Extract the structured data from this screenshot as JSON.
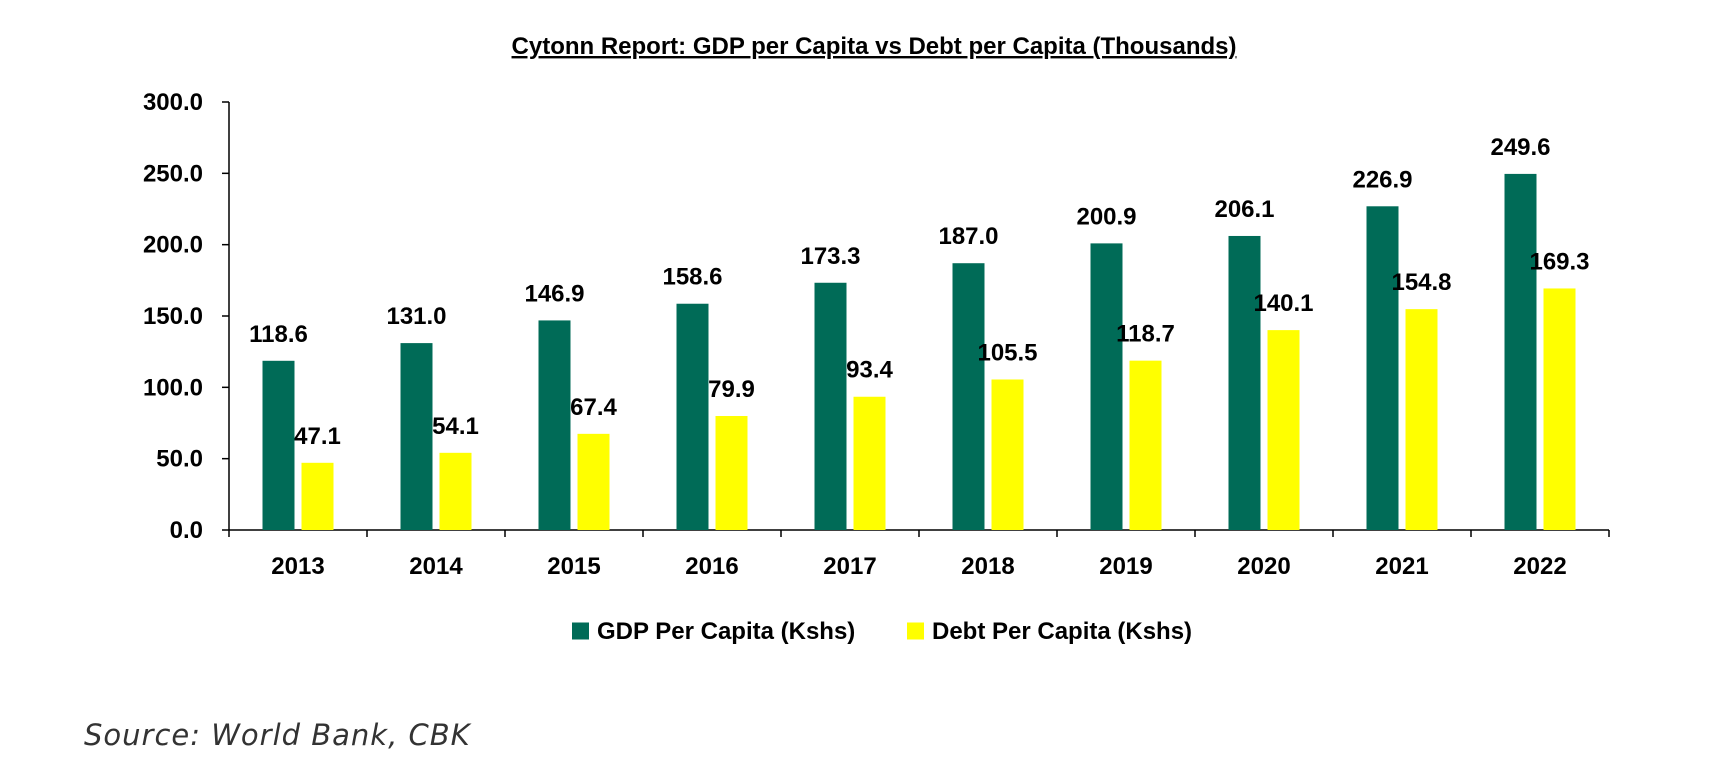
{
  "chart_data": {
    "type": "bar",
    "title": "Cytonn Report: GDP per Capita vs Debt per Capita (Thousands)",
    "categories": [
      "2013",
      "2014",
      "2015",
      "2016",
      "2017",
      "2018",
      "2019",
      "2020",
      "2021",
      "2022"
    ],
    "series": [
      {
        "name": "GDP Per Capita (Kshs)",
        "color": "#006b57",
        "values": [
          118.6,
          131.0,
          146.9,
          158.6,
          173.3,
          187.0,
          200.9,
          206.1,
          226.9,
          249.6
        ]
      },
      {
        "name": "Debt Per Capita (Kshs)",
        "color": "#ffff00",
        "values": [
          47.1,
          54.1,
          67.4,
          79.9,
          93.4,
          105.5,
          118.7,
          140.1,
          154.8,
          169.3
        ]
      }
    ],
    "ylim": [
      0,
      300
    ],
    "yticks": [
      0,
      50,
      100,
      150,
      200,
      250,
      300
    ],
    "tick_decimals": 1,
    "xlabel": "",
    "ylabel": "",
    "grid": false,
    "legend_position": "bottom-center"
  },
  "source_note": "Source: World Bank, CBK"
}
